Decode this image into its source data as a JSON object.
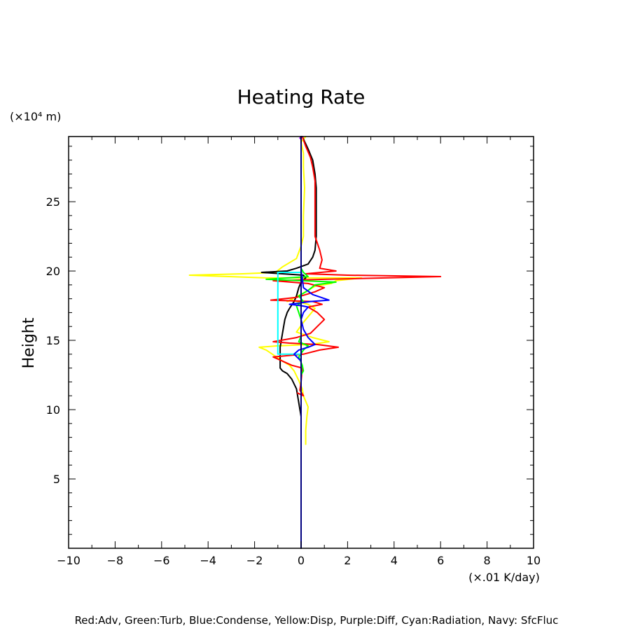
{
  "chart_data": {
    "type": "line",
    "title": "Heating Rate",
    "ylabel": "Height",
    "y_unit": "(×10⁴ m)",
    "x_unit": "(×.01 K/day)",
    "xlim": [
      -10,
      10
    ],
    "ylim": [
      0,
      29.7
    ],
    "x_ticks": [
      -10,
      -8,
      -6,
      -4,
      -2,
      0,
      2,
      4,
      6,
      8,
      10
    ],
    "y_ticks": [
      5,
      10,
      15,
      20,
      25
    ],
    "grid": false,
    "legend_text": "Red:Adv, Green:Turb, Blue:Condense, Yellow:Disp, Purple:Diff, Cyan:Radiation, Navy: SfcFluc",
    "series": [
      {
        "name": "Yellow:Disp",
        "color": "#ffff00",
        "points": [
          [
            0.2,
            7.5
          ],
          [
            0.2,
            8.5
          ],
          [
            0.25,
            9.5
          ],
          [
            0.3,
            10.2
          ],
          [
            0.1,
            11.0
          ],
          [
            0.05,
            11.5
          ],
          [
            -0.1,
            12.1
          ],
          [
            -0.3,
            12.8
          ],
          [
            -0.5,
            13.2
          ],
          [
            -0.8,
            13.5
          ],
          [
            -1.5,
            14.3
          ],
          [
            -1.8,
            14.5
          ],
          [
            -1.0,
            14.6
          ],
          [
            0.4,
            14.7
          ],
          [
            1.2,
            14.9
          ],
          [
            0.5,
            15.2
          ],
          [
            -0.2,
            15.6
          ],
          [
            0.1,
            16.3
          ],
          [
            0.6,
            17.3
          ],
          [
            0.3,
            17.6
          ],
          [
            -0.4,
            17.9
          ],
          [
            -0.6,
            17.8
          ],
          [
            0.2,
            18.5
          ],
          [
            0.6,
            18.9
          ],
          [
            1.3,
            19.1
          ],
          [
            1.5,
            19.3
          ],
          [
            2.6,
            19.5
          ],
          [
            -1.5,
            19.5
          ],
          [
            -4.8,
            19.7
          ],
          [
            -2.5,
            19.8
          ],
          [
            -1.1,
            19.9
          ],
          [
            -0.8,
            20.3
          ],
          [
            -0.2,
            20.9
          ],
          [
            0.0,
            21.8
          ],
          [
            0.1,
            22.5
          ],
          [
            0.1,
            24.0
          ],
          [
            0.15,
            26.0
          ],
          [
            0.1,
            27.5
          ],
          [
            0.1,
            28.5
          ],
          [
            0.0,
            29.3
          ],
          [
            0.2,
            29.7
          ]
        ]
      },
      {
        "name": "SfcFluc (black)",
        "color": "#000000",
        "points": [
          [
            0,
            0
          ],
          [
            0,
            9.5
          ],
          [
            -0.2,
            11.5
          ],
          [
            -0.4,
            12.2
          ],
          [
            -0.6,
            12.6
          ],
          [
            -0.8,
            12.8
          ],
          [
            -0.9,
            13.0
          ],
          [
            -0.9,
            13.5
          ],
          [
            -0.9,
            14.5
          ],
          [
            -0.8,
            15.5
          ],
          [
            -0.7,
            16.5
          ],
          [
            -0.6,
            17.0
          ],
          [
            -0.5,
            17.3
          ],
          [
            -0.3,
            17.8
          ],
          [
            -0.2,
            18.2
          ],
          [
            -0.1,
            18.8
          ],
          [
            0.0,
            19.2
          ],
          [
            0.2,
            19.5
          ],
          [
            0.1,
            19.7
          ],
          [
            -1.7,
            19.9
          ],
          [
            -0.6,
            20.0
          ],
          [
            -0.2,
            20.2
          ],
          [
            0.3,
            20.5
          ],
          [
            0.5,
            21.0
          ],
          [
            0.6,
            21.5
          ],
          [
            0.65,
            22.5
          ],
          [
            0.65,
            24.0
          ],
          [
            0.65,
            26.0
          ],
          [
            0.6,
            27.0
          ],
          [
            0.5,
            28.0
          ],
          [
            0.3,
            28.8
          ],
          [
            0.05,
            29.7
          ]
        ]
      },
      {
        "name": "Red:Adv",
        "color": "#ff0000",
        "points": [
          [
            -0.15,
            11.2
          ],
          [
            0.1,
            11.0
          ],
          [
            -0.05,
            11.4
          ],
          [
            0.0,
            12.0
          ],
          [
            0.05,
            13.0
          ],
          [
            -0.4,
            13.2
          ],
          [
            -0.8,
            13.5
          ],
          [
            -1.2,
            13.8
          ],
          [
            0.1,
            14.0
          ],
          [
            0.8,
            14.3
          ],
          [
            1.6,
            14.5
          ],
          [
            0.7,
            14.7
          ],
          [
            -0.5,
            14.8
          ],
          [
            -1.2,
            14.9
          ],
          [
            -0.2,
            15.2
          ],
          [
            0.4,
            15.5
          ],
          [
            0.7,
            16.0
          ],
          [
            1.0,
            16.5
          ],
          [
            0.7,
            17.0
          ],
          [
            0.3,
            17.4
          ],
          [
            0.9,
            17.6
          ],
          [
            0.5,
            17.8
          ],
          [
            -1.3,
            17.9
          ],
          [
            -0.2,
            18.1
          ],
          [
            0.6,
            18.5
          ],
          [
            1.0,
            18.8
          ],
          [
            0.3,
            19.1
          ],
          [
            -1.2,
            19.3
          ],
          [
            1.0,
            19.4
          ],
          [
            6.0,
            19.6
          ],
          [
            2.0,
            19.7
          ],
          [
            0.2,
            19.8
          ],
          [
            1.5,
            20.0
          ],
          [
            0.8,
            20.2
          ],
          [
            0.9,
            20.8
          ],
          [
            0.8,
            21.5
          ],
          [
            0.6,
            22.5
          ],
          [
            0.6,
            23.5
          ],
          [
            0.6,
            25.0
          ],
          [
            0.6,
            26.5
          ],
          [
            0.5,
            27.5
          ],
          [
            0.4,
            28.2
          ],
          [
            0.2,
            29.0
          ],
          [
            0.05,
            29.7
          ]
        ]
      },
      {
        "name": "Green:Turb",
        "color": "#00ff00",
        "points": [
          [
            0.0,
            12.5
          ],
          [
            0.1,
            12.8
          ],
          [
            0.05,
            13.2
          ],
          [
            -0.1,
            13.8
          ],
          [
            0.1,
            14.3
          ],
          [
            0.3,
            14.6
          ],
          [
            -0.1,
            14.9
          ],
          [
            0.0,
            15.3
          ],
          [
            0.0,
            16.5
          ],
          [
            -0.2,
            17.5
          ],
          [
            0.1,
            17.8
          ],
          [
            -0.1,
            18.2
          ],
          [
            0.3,
            18.6
          ],
          [
            0.6,
            19.0
          ],
          [
            1.5,
            19.2
          ],
          [
            -1.5,
            19.4
          ],
          [
            0.3,
            19.6
          ],
          [
            0.1,
            19.9
          ],
          [
            0.0,
            20.2
          ],
          [
            0.0,
            29.7
          ]
        ]
      },
      {
        "name": "Cyan:Radiation",
        "color": "#00ffff",
        "points": [
          [
            0.0,
            14.0
          ],
          [
            -1.0,
            14.0
          ],
          [
            -1.0,
            15.0
          ],
          [
            -1.0,
            16.5
          ],
          [
            -1.0,
            18.0
          ],
          [
            -1.0,
            19.9
          ],
          [
            0.0,
            19.9
          ]
        ]
      },
      {
        "name": "Blue:Condense",
        "color": "#0000ff",
        "points": [
          [
            0.0,
            13.5
          ],
          [
            -0.3,
            14.0
          ],
          [
            -0.1,
            14.3
          ],
          [
            0.3,
            14.5
          ],
          [
            0.6,
            14.7
          ],
          [
            0.3,
            15.2
          ],
          [
            0.1,
            15.8
          ],
          [
            0.0,
            16.5
          ],
          [
            0.1,
            17.0
          ],
          [
            0.3,
            17.4
          ],
          [
            0.0,
            17.5
          ],
          [
            -0.5,
            17.6
          ],
          [
            0.4,
            17.8
          ],
          [
            1.2,
            17.9
          ],
          [
            0.5,
            18.3
          ],
          [
            0.1,
            18.8
          ],
          [
            0.05,
            19.5
          ],
          [
            0.0,
            20.0
          ],
          [
            0.0,
            29.7
          ]
        ]
      },
      {
        "name": "Purple:Diff",
        "color": "#9900ff",
        "points": [
          [
            0.0,
            29.5
          ],
          [
            -0.05,
            29.6
          ],
          [
            0.05,
            29.7
          ]
        ]
      },
      {
        "name": "Navy: SfcFluc",
        "color": "#000080",
        "points": [
          [
            0,
            0
          ],
          [
            0,
            29.7
          ]
        ]
      }
    ]
  }
}
